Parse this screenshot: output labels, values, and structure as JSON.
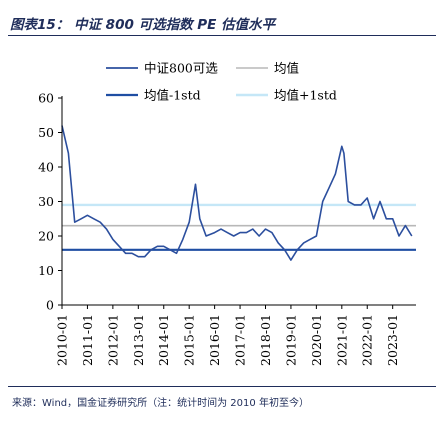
{
  "figure": {
    "title": "图表15：  中证 800 可选指数 PE 估值水平",
    "source": "来源：Wind，国金证券研究所（注：统计时间为 2010 年初至今）"
  },
  "chart_data": {
    "type": "line",
    "x": [
      "2010-01",
      "2010-04",
      "2010-07",
      "2010-10",
      "2011-01",
      "2011-04",
      "2011-07",
      "2011-10",
      "2012-01",
      "2012-04",
      "2012-07",
      "2012-10",
      "2013-01",
      "2013-04",
      "2013-07",
      "2013-10",
      "2014-01",
      "2014-04",
      "2014-07",
      "2014-10",
      "2015-01",
      "2015-04",
      "2015-06",
      "2015-09",
      "2016-01",
      "2016-04",
      "2016-07",
      "2016-10",
      "2017-01",
      "2017-04",
      "2017-07",
      "2017-10",
      "2018-01",
      "2018-04",
      "2018-07",
      "2018-10",
      "2019-01",
      "2019-04",
      "2019-07",
      "2019-10",
      "2020-01",
      "2020-04",
      "2020-07",
      "2020-10",
      "2021-01",
      "2021-02",
      "2021-04",
      "2021-07",
      "2021-10",
      "2022-01",
      "2022-04",
      "2022-07",
      "2022-10",
      "2023-01",
      "2023-04",
      "2023-07",
      "2023-10"
    ],
    "series": [
      {
        "name": "中证800可选",
        "color": "#2c4f9e",
        "values": [
          52,
          44,
          24,
          25,
          26,
          25,
          24,
          22,
          19,
          17,
          15,
          15,
          14,
          14,
          16,
          17,
          17,
          16,
          15,
          19,
          24,
          35,
          25,
          20,
          21,
          22,
          21,
          20,
          21,
          21,
          22,
          20,
          22,
          21,
          18,
          16,
          13,
          16,
          18,
          19,
          20,
          30,
          34,
          38,
          46,
          44,
          30,
          29,
          29,
          31,
          25,
          30,
          25,
          25,
          20,
          23,
          20
        ]
      },
      {
        "name": "均值",
        "color": "#b8b8b8",
        "constant": 23
      },
      {
        "name": "均值-1std",
        "color": "#1f4ea3",
        "constant": 16
      },
      {
        "name": "均值+1std",
        "color": "#c5e7f7",
        "constant": 29
      }
    ],
    "xticks": [
      "2010-01",
      "2011-01",
      "2012-01",
      "2013-01",
      "2014-01",
      "2015-01",
      "2016-01",
      "2017-01",
      "2018-01",
      "2019-01",
      "2020-01",
      "2021-01",
      "2022-01",
      "2023-01"
    ],
    "xlim": [
      "2010-01",
      "2023-12"
    ],
    "yticks": [
      0,
      10,
      20,
      30,
      40,
      50,
      60
    ],
    "ylim": [
      0,
      60
    ],
    "legend_placement": "top-center",
    "grid": false
  }
}
